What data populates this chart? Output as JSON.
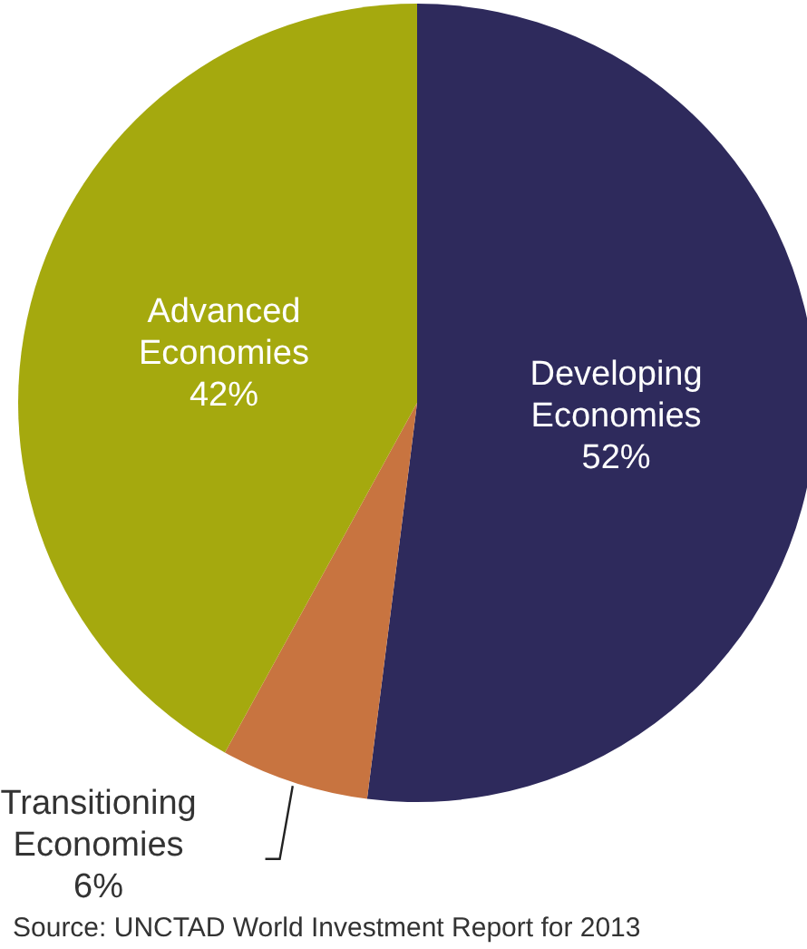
{
  "chart_data": {
    "type": "pie",
    "categories": [
      "Developing Economies",
      "Transitioning Economies",
      "Advanced Economies"
    ],
    "values": [
      52,
      6,
      42
    ],
    "value_labels": [
      "52%",
      "6%",
      "42%"
    ],
    "colors": [
      "#2e2a5c",
      "#c87440",
      "#a5a90e"
    ],
    "annotations": [
      "Source: UNCTAD World Investment Report for 2013"
    ]
  }
}
